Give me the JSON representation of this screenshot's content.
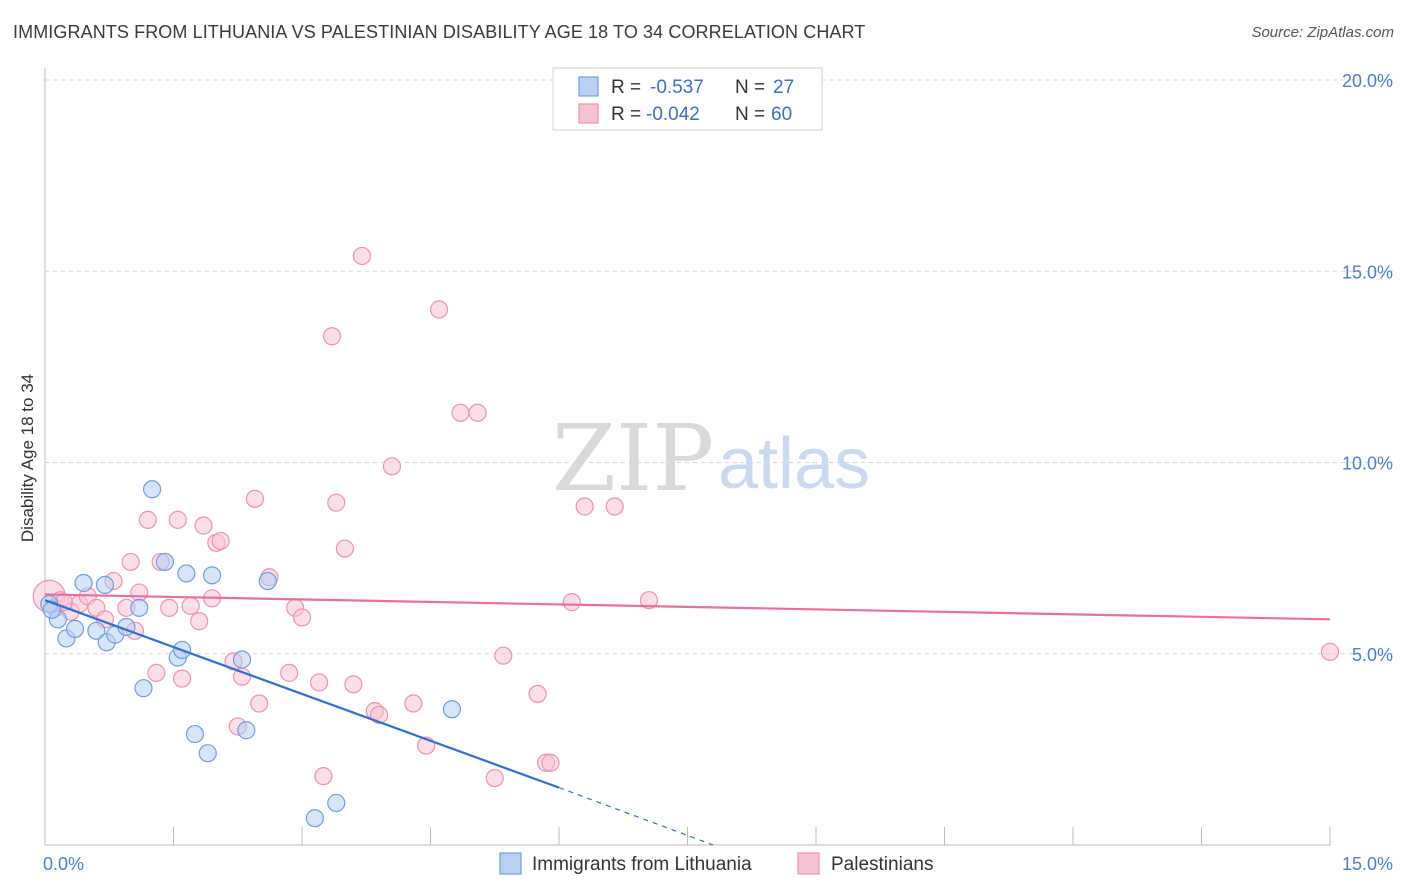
{
  "header": {
    "title": "IMMIGRANTS FROM LITHUANIA VS PALESTINIAN DISABILITY AGE 18 TO 34 CORRELATION CHART",
    "source": "Source: ZipAtlas.com"
  },
  "watermark": {
    "zip": "ZIP",
    "atlas": "atlas"
  },
  "colors": {
    "blue_fill": "#b7d0f3",
    "blue_stroke": "#6f9ee0",
    "blue_line": "#2f6fd6",
    "pink_fill": "#f7c3d3",
    "pink_stroke": "#ec93b0",
    "pink_line": "#e8709a",
    "axis_text": "#4a7fd0",
    "grid": "#d8d8d8"
  },
  "chart_data": {
    "type": "scatter",
    "title": "IMMIGRANTS FROM LITHUANIA VS PALESTINIAN DISABILITY AGE 18 TO 34 CORRELATION CHART",
    "xlabel": "",
    "ylabel": "Disability Age 18 to 34",
    "xlim": [
      0,
      15
    ],
    "ylim": [
      0,
      20.5
    ],
    "x_tick_labels": [
      "0.0%",
      "15.0%"
    ],
    "y_ticks": [
      5,
      10,
      15,
      20
    ],
    "y_tick_labels": [
      "5.0%",
      "10.0%",
      "15.0%",
      "20.0%"
    ],
    "grid": true,
    "legend_placement": "top-center",
    "series": [
      {
        "name": "Immigrants from Lithuania",
        "color": "#6f9ee0",
        "R": "-0.537",
        "N": "27",
        "trend": {
          "x0": 0.0,
          "y0": 6.4,
          "x1": 6.0,
          "y1": 1.5,
          "dash_to_x": 7.8,
          "dash_to_y": 0.0
        },
        "points": [
          [
            0.05,
            6.3
          ],
          [
            0.15,
            5.9
          ],
          [
            0.25,
            5.4
          ],
          [
            0.35,
            5.65
          ],
          [
            0.45,
            6.85
          ],
          [
            0.6,
            5.6
          ],
          [
            0.7,
            6.8
          ],
          [
            0.72,
            5.3
          ],
          [
            0.82,
            5.5
          ],
          [
            0.95,
            5.7
          ],
          [
            1.1,
            6.2
          ],
          [
            1.15,
            4.1
          ],
          [
            1.25,
            9.3
          ],
          [
            1.4,
            7.4
          ],
          [
            1.55,
            4.9
          ],
          [
            1.6,
            5.1
          ],
          [
            1.65,
            7.1
          ],
          [
            1.75,
            2.9
          ],
          [
            1.9,
            2.4
          ],
          [
            1.95,
            7.05
          ],
          [
            2.3,
            4.85
          ],
          [
            2.35,
            3.0
          ],
          [
            2.6,
            6.9
          ],
          [
            3.15,
            0.7
          ],
          [
            3.4,
            1.1
          ],
          [
            4.75,
            3.55
          ],
          [
            0.08,
            6.15
          ]
        ]
      },
      {
        "name": "Palestinians",
        "color": "#ec93b0",
        "R": "-0.042",
        "N": "60",
        "trend": {
          "x0": 0.0,
          "y0": 6.55,
          "x1": 15.0,
          "y1": 5.9
        },
        "points": [
          [
            0.05,
            6.5
          ],
          [
            0.12,
            6.2
          ],
          [
            0.18,
            6.4
          ],
          [
            0.3,
            6.1
          ],
          [
            0.4,
            6.3
          ],
          [
            0.5,
            6.5
          ],
          [
            0.6,
            6.2
          ],
          [
            0.7,
            5.9
          ],
          [
            0.8,
            6.9
          ],
          [
            0.95,
            6.2
          ],
          [
            1.0,
            7.4
          ],
          [
            1.1,
            6.6
          ],
          [
            1.2,
            8.5
          ],
          [
            1.3,
            4.5
          ],
          [
            1.35,
            7.4
          ],
          [
            1.45,
            6.2
          ],
          [
            1.55,
            8.5
          ],
          [
            1.6,
            4.35
          ],
          [
            1.7,
            6.25
          ],
          [
            1.8,
            5.85
          ],
          [
            1.85,
            8.35
          ],
          [
            1.95,
            6.45
          ],
          [
            2.0,
            7.9
          ],
          [
            2.05,
            7.95
          ],
          [
            2.2,
            4.8
          ],
          [
            2.25,
            3.1
          ],
          [
            2.3,
            4.4
          ],
          [
            2.45,
            9.05
          ],
          [
            2.5,
            3.7
          ],
          [
            2.62,
            7.0
          ],
          [
            2.85,
            4.5
          ],
          [
            2.92,
            6.2
          ],
          [
            3.0,
            5.95
          ],
          [
            3.2,
            4.25
          ],
          [
            3.25,
            1.8
          ],
          [
            3.35,
            13.3
          ],
          [
            3.4,
            8.95
          ],
          [
            3.5,
            7.75
          ],
          [
            3.6,
            4.2
          ],
          [
            3.7,
            15.4
          ],
          [
            3.85,
            3.5
          ],
          [
            3.9,
            3.4
          ],
          [
            4.05,
            9.9
          ],
          [
            4.3,
            3.7
          ],
          [
            4.45,
            2.6
          ],
          [
            4.6,
            14.0
          ],
          [
            4.85,
            11.3
          ],
          [
            5.05,
            11.3
          ],
          [
            5.25,
            1.75
          ],
          [
            5.35,
            4.95
          ],
          [
            5.75,
            3.95
          ],
          [
            5.85,
            2.15
          ],
          [
            5.9,
            2.15
          ],
          [
            6.15,
            6.35
          ],
          [
            6.3,
            8.85
          ],
          [
            6.65,
            8.85
          ],
          [
            7.05,
            6.4
          ],
          [
            15.0,
            5.05
          ],
          [
            0.22,
            6.35
          ],
          [
            1.05,
            5.6
          ]
        ]
      }
    ]
  }
}
